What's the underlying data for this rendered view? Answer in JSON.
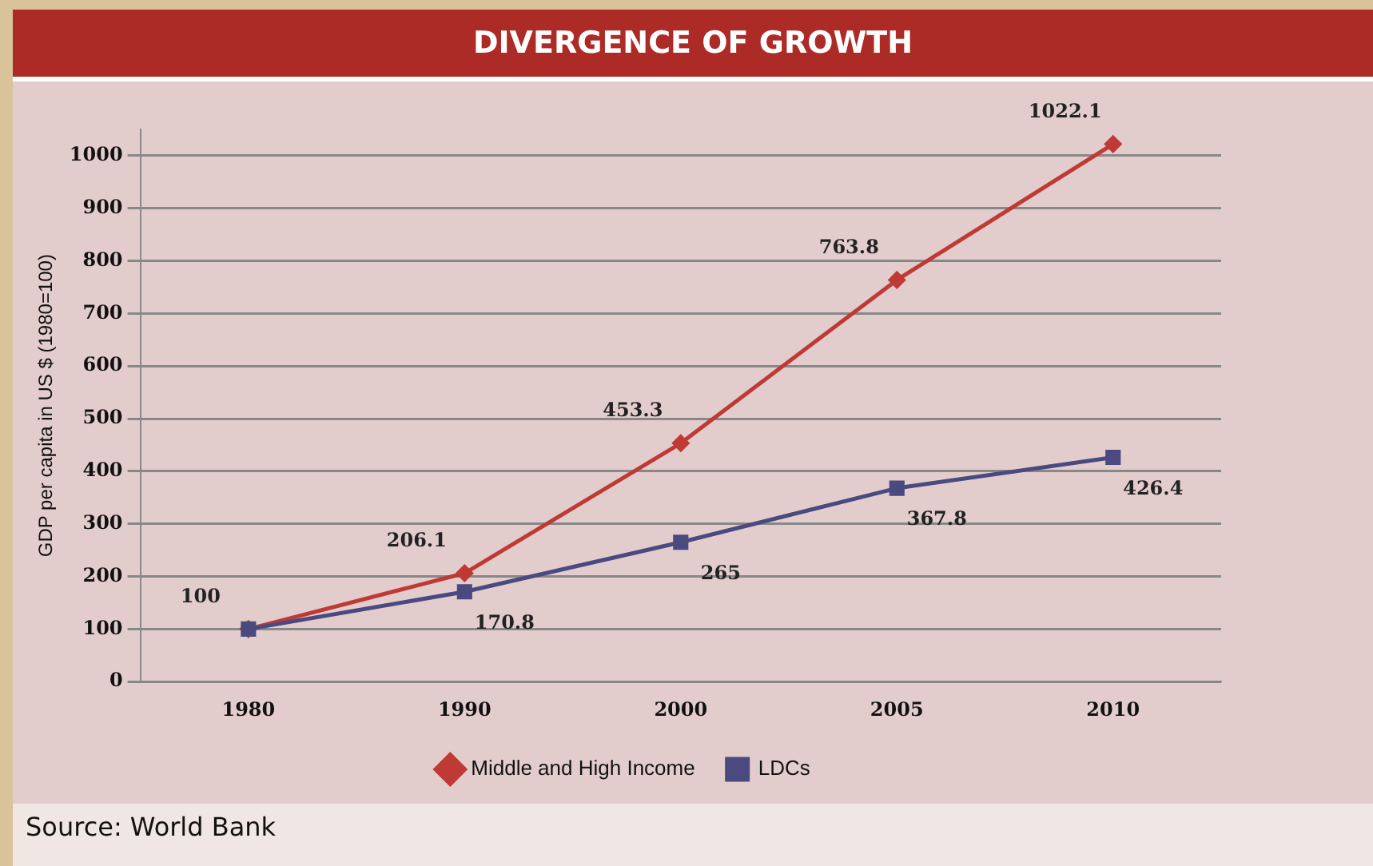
{
  "chart_data": {
    "type": "line",
    "title": "DIVERGENCE OF GROWTH",
    "ylabel": "GDP per capita in US $ (1980=100)",
    "categories": [
      "1980",
      "1990",
      "2000",
      "2005",
      "2010"
    ],
    "series": [
      {
        "name": "Middle and High Income",
        "color": "#be3a34",
        "marker": "diamond",
        "values": [
          100,
          206.1,
          453.3,
          763.8,
          1022.1
        ],
        "value_labels": [
          "100",
          "206.1",
          "453.3",
          "763.8",
          "1022.1"
        ]
      },
      {
        "name": "LDCs",
        "color": "#4a4a80",
        "marker": "square",
        "values": [
          100,
          170.8,
          265,
          367.8,
          426.4
        ],
        "value_labels": [
          null,
          "170.8",
          "265",
          "367.8",
          "426.4"
        ]
      }
    ],
    "ylim": [
      0,
      1050
    ],
    "yticks": [
      0,
      100,
      200,
      300,
      400,
      500,
      600,
      700,
      800,
      900,
      1000
    ],
    "grid": "y",
    "legend": "bottom",
    "annotations": [
      "Source: World Bank"
    ]
  }
}
